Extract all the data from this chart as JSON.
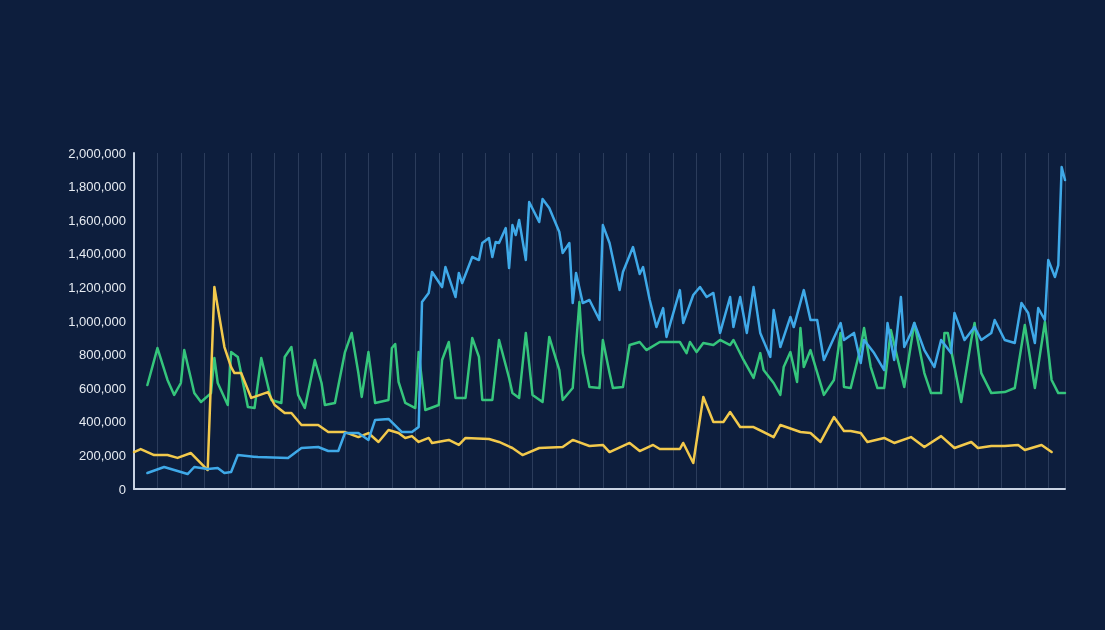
{
  "chart_data": {
    "type": "line",
    "tick_labels": "y",
    "grid": "x",
    "line_style": "solid",
    "categories": [
      null,
      null,
      null,
      null,
      null,
      null,
      null,
      null,
      null,
      null,
      null,
      null,
      null,
      null,
      null,
      null,
      null,
      null,
      null,
      null,
      null,
      null,
      null,
      null,
      null,
      null,
      null,
      null,
      null,
      null,
      null,
      null,
      null,
      null,
      null,
      null,
      null,
      null,
      null,
      null,
      null,
      null,
      null,
      null,
      null,
      null,
      null,
      null,
      null,
      null,
      null,
      null,
      null,
      null,
      null,
      null,
      null,
      null,
      null,
      null,
      null,
      null,
      null,
      null,
      null,
      null,
      null,
      null,
      null,
      null,
      null,
      null,
      null,
      null,
      null,
      null,
      null,
      null,
      null,
      null,
      null,
      null,
      null,
      null,
      null,
      null,
      null,
      null,
      null,
      null,
      null,
      null,
      null,
      null,
      null,
      null,
      null,
      null,
      null,
      null,
      null,
      null,
      null,
      null,
      null,
      null,
      null,
      null,
      null,
      null,
      null,
      null,
      null,
      null,
      null,
      null,
      null,
      null,
      null,
      null,
      null,
      null,
      null,
      null,
      null,
      null,
      null,
      null,
      null,
      null,
      null,
      null,
      null,
      null,
      null,
      null,
      null,
      null,
      null,
      null,
      null,
      null,
      null,
      null,
      null,
      null,
      null,
      null,
      null,
      null,
      null,
      null,
      null,
      null,
      null,
      null,
      null,
      null,
      null,
      null,
      null,
      null,
      null,
      null,
      null,
      null,
      null,
      null,
      null,
      null,
      null,
      null,
      null,
      null,
      null,
      null,
      null,
      null,
      null,
      null,
      null,
      null,
      null,
      null,
      null,
      null,
      null,
      null,
      null,
      null,
      null,
      null,
      null,
      null,
      null,
      null,
      null,
      null,
      null,
      null,
      null,
      null,
      null,
      null,
      null,
      null,
      null,
      null,
      null,
      null,
      null,
      null,
      null,
      null,
      null,
      null,
      null,
      null,
      null,
      null,
      null,
      null,
      null,
      null,
      null,
      null,
      null,
      null,
      null,
      null,
      null,
      null,
      null,
      null,
      null,
      null,
      null,
      null,
      null,
      null,
      null,
      null,
      null,
      null,
      null,
      null,
      null,
      null,
      null,
      null,
      null,
      null,
      null,
      null,
      null,
      null,
      null,
      null,
      null,
      null,
      null,
      null,
      null,
      null,
      null,
      null,
      null,
      null,
      null,
      null,
      null,
      null,
      null,
      null,
      null,
      null,
      null,
      null,
      null
    ],
    "ylim": [
      0,
      2000000
    ],
    "yticks": [
      {
        "value": 0,
        "label": "0"
      },
      {
        "value": 200000,
        "label": "200,000"
      },
      {
        "value": 400000,
        "label": "400,000"
      },
      {
        "value": 600000,
        "label": "600,000"
      },
      {
        "value": 800000,
        "label": "800,000"
      },
      {
        "value": 1000000,
        "label": "1,000,000"
      },
      {
        "value": 1200000,
        "label": "1,200,000"
      },
      {
        "value": 1400000,
        "label": "1,400,000"
      },
      {
        "value": 1600000,
        "label": "1,600,000"
      },
      {
        "value": 1800000,
        "label": "1,800,000"
      },
      {
        "value": 2000000,
        "label": "2,000,000"
      }
    ],
    "series": [
      {
        "color": "#35c57c",
        "values": [
          null,
          null,
          null,
          null,
          619000,
          null,
          null,
          839000,
          null,
          null,
          649000,
          null,
          560000,
          null,
          631000,
          827000,
          null,
          null,
          571000,
          null,
          518000,
          null,
          null,
          571000,
          780000,
          631000,
          null,
          null,
          500000,
          815000,
          null,
          786000,
          null,
          null,
          488000,
          null,
          482000,
          null,
          780000,
          null,
          null,
          530000,
          null,
          null,
          512000,
          786000,
          null,
          845000,
          null,
          560000,
          null,
          482000,
          null,
          null,
          768000,
          null,
          631000,
          500000,
          null,
          null,
          512000,
          null,
          null,
          815000,
          null,
          929000,
          null,
          690000,
          548000,
          null,
          815000,
          null,
          512000,
          null,
          null,
          null,
          530000,
          839000,
          863000,
          637000,
          null,
          512000,
          null,
          null,
          482000,
          815000,
          null,
          470000,
          null,
          null,
          null,
          500000,
          768000,
          null,
          875000,
          null,
          542000,
          null,
          null,
          542000,
          null,
          899000,
          null,
          786000,
          530000,
          null,
          null,
          530000,
          null,
          887000,
          null,
          null,
          661000,
          571000,
          null,
          542000,
          null,
          929000,
          null,
          560000,
          null,
          null,
          518000,
          null,
          905000,
          null,
          null,
          708000,
          530000,
          null,
          null,
          601000,
          null,
          1113000,
          809000,
          null,
          607000,
          null,
          null,
          601000,
          887000,
          null,
          690000,
          601000,
          null,
          null,
          607000,
          null,
          857000,
          null,
          null,
          875000,
          null,
          827000,
          null,
          null,
          null,
          875000,
          null,
          null,
          null,
          null,
          null,
          875000,
          null,
          809000,
          875000,
          null,
          815000,
          null,
          869000,
          null,
          null,
          857000,
          null,
          887000,
          null,
          null,
          857000,
          887000,
          null,
          null,
          768000,
          null,
          null,
          661000,
          null,
          809000,
          708000,
          null,
          null,
          631000,
          null,
          560000,
          726000,
          null,
          815000,
          null,
          637000,
          958000,
          726000,
          null,
          827000,
          null,
          null,
          null,
          560000,
          null,
          null,
          649000,
          null,
          929000,
          607000,
          null,
          601000,
          null,
          null,
          845000,
          958000,
          null,
          726000,
          null,
          601000,
          null,
          601000,
          null,
          946000,
          null,
          null,
          null,
          607000,
          null,
          null,
          988000,
          null,
          null,
          690000,
          null,
          571000,
          null,
          null,
          571000,
          929000,
          929000,
          null,
          726000,
          null,
          518000,
          null,
          null,
          887000,
          988000,
          null,
          690000,
          null,
          null,
          571000,
          null,
          null,
          null,
          577000,
          null,
          null,
          601000,
          null,
          null,
          976000,
          null,
          null,
          601000,
          null,
          null,
          994000,
          null,
          649000,
          null,
          571000,
          null,
          571000
        ]
      },
      {
        "color": "#f2c94c",
        "values": [
          220000,
          null,
          238000,
          null,
          null,
          null,
          202000,
          null,
          null,
          null,
          202000,
          null,
          null,
          185000,
          null,
          null,
          null,
          214000,
          null,
          null,
          null,
          null,
          113000,
          null,
          1202000,
          null,
          null,
          845000,
          null,
          726000,
          690000,
          null,
          690000,
          null,
          null,
          542000,
          null,
          null,
          null,
          null,
          577000,
          null,
          500000,
          null,
          null,
          452000,
          null,
          452000,
          null,
          null,
          381000,
          null,
          null,
          null,
          null,
          381000,
          null,
          null,
          339000,
          null,
          null,
          null,
          null,
          339000,
          null,
          null,
          null,
          309000,
          null,
          null,
          333000,
          null,
          null,
          280000,
          null,
          null,
          351000,
          null,
          null,
          333000,
          null,
          304000,
          null,
          315000,
          null,
          280000,
          null,
          null,
          304000,
          274000,
          null,
          null,
          null,
          null,
          292000,
          null,
          null,
          262000,
          null,
          304000,
          null,
          null,
          null,
          null,
          null,
          null,
          298000,
          null,
          null,
          280000,
          null,
          null,
          null,
          244000,
          null,
          null,
          202000,
          null,
          null,
          null,
          null,
          244000,
          null,
          null,
          null,
          null,
          null,
          null,
          250000,
          null,
          null,
          292000,
          null,
          null,
          null,
          null,
          256000,
          null,
          null,
          null,
          262000,
          null,
          220000,
          null,
          null,
          null,
          null,
          null,
          274000,
          null,
          null,
          226000,
          null,
          null,
          null,
          262000,
          null,
          238000,
          null,
          null,
          null,
          null,
          null,
          238000,
          274000,
          null,
          null,
          155000,
          null,
          null,
          548000,
          null,
          null,
          399000,
          null,
          null,
          399000,
          null,
          458000,
          null,
          null,
          369000,
          null,
          null,
          null,
          369000,
          null,
          null,
          null,
          null,
          null,
          309000,
          null,
          381000,
          null,
          null,
          null,
          null,
          null,
          339000,
          null,
          null,
          333000,
          null,
          null,
          280000,
          null,
          null,
          null,
          428000,
          null,
          null,
          345000,
          null,
          345000,
          null,
          null,
          333000,
          null,
          280000,
          null,
          null,
          null,
          null,
          304000,
          null,
          null,
          274000,
          null,
          null,
          null,
          null,
          309000,
          null,
          null,
          null,
          250000,
          null,
          null,
          null,
          null,
          315000,
          null,
          null,
          null,
          244000,
          null,
          null,
          null,
          null,
          280000,
          null,
          244000,
          null,
          null,
          null,
          256000,
          null,
          null,
          null,
          256000,
          null,
          null,
          null,
          262000,
          null,
          232000,
          null,
          null,
          null,
          null,
          262000,
          null,
          null,
          220000,
          null,
          null,
          null,
          null
        ]
      },
      {
        "color": "#3fa9e8",
        "values": [
          null,
          null,
          null,
          null,
          95000,
          null,
          null,
          null,
          null,
          131000,
          null,
          null,
          null,
          null,
          null,
          null,
          89000,
          null,
          131000,
          null,
          null,
          null,
          119000,
          null,
          null,
          125000,
          null,
          95000,
          null,
          101000,
          null,
          202000,
          null,
          null,
          null,
          null,
          null,
          190000,
          null,
          null,
          null,
          null,
          null,
          null,
          null,
          null,
          185000,
          null,
          null,
          null,
          244000,
          null,
          null,
          null,
          null,
          250000,
          null,
          null,
          226000,
          null,
          null,
          226000,
          null,
          333000,
          null,
          null,
          null,
          333000,
          null,
          null,
          292000,
          null,
          411000,
          null,
          null,
          null,
          417000,
          null,
          null,
          null,
          339000,
          null,
          null,
          339000,
          null,
          369000,
          1113000,
          null,
          1167000,
          1292000,
          null,
          null,
          1202000,
          1321000,
          null,
          null,
          1143000,
          1286000,
          1226000,
          null,
          null,
          1381000,
          null,
          1363000,
          1464000,
          null,
          1494000,
          1381000,
          1470000,
          1464000,
          null,
          1553000,
          1315000,
          1571000,
          1512000,
          1601000,
          null,
          1363000,
          1708000,
          null,
          null,
          1589000,
          1726000,
          null,
          1672000,
          null,
          null,
          1530000,
          1405000,
          null,
          1464000,
          1107000,
          1286000,
          null,
          1107000,
          null,
          1125000,
          null,
          null,
          1006000,
          1571000,
          null,
          1464000,
          null,
          null,
          1184000,
          1292000,
          null,
          null,
          1440000,
          null,
          1280000,
          1321000,
          null,
          1125000,
          null,
          964000,
          null,
          1077000,
          905000,
          null,
          null,
          null,
          1184000,
          988000,
          null,
          null,
          1155000,
          null,
          1202000,
          null,
          1143000,
          null,
          1167000,
          null,
          929000,
          null,
          null,
          1143000,
          964000,
          null,
          1143000,
          null,
          929000,
          null,
          1202000,
          null,
          929000,
          null,
          null,
          786000,
          1065000,
          null,
          845000,
          null,
          null,
          1024000,
          964000,
          null,
          null,
          1184000,
          null,
          1006000,
          null,
          1006000,
          null,
          768000,
          null,
          null,
          null,
          null,
          988000,
          887000,
          null,
          null,
          929000,
          null,
          750000,
          887000,
          null,
          null,
          809000,
          null,
          null,
          708000,
          988000,
          null,
          768000,
          null,
          1143000,
          845000,
          null,
          929000,
          988000,
          null,
          null,
          827000,
          null,
          null,
          726000,
          null,
          887000,
          null,
          null,
          809000,
          1048000,
          null,
          null,
          887000,
          null,
          null,
          964000,
          null,
          887000,
          null,
          null,
          929000,
          1006000,
          null,
          null,
          887000,
          null,
          null,
          869000,
          null,
          1107000,
          null,
          1048000,
          null,
          869000,
          1077000,
          null,
          1006000,
          1363000,
          null,
          1262000,
          1333000,
          1917000,
          1839000
        ]
      }
    ]
  }
}
